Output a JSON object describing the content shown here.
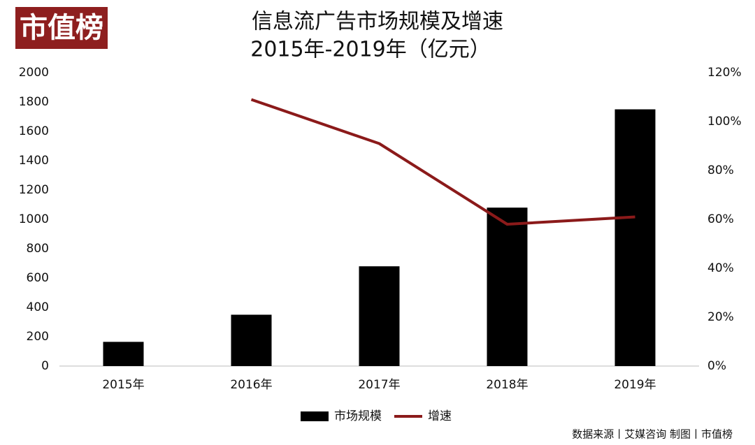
{
  "logo": "市值榜",
  "source": "数据来源丨艾媒咨询 制图丨市值榜",
  "chart_data": {
    "type": "bar",
    "title": "信息流广告市场规模及增速",
    "subtitle": "2015年-2019年（亿元）",
    "categories": [
      "2015年",
      "2016年",
      "2017年",
      "2018年",
      "2019年"
    ],
    "series": [
      {
        "name": "市场规模",
        "type": "bar",
        "color": "#000000",
        "values": [
          165,
          350,
          680,
          1080,
          1750
        ]
      },
      {
        "name": "增速",
        "type": "line",
        "axis": "y2",
        "color": "#8b1a1a",
        "values": [
          null,
          109,
          91,
          58,
          61
        ]
      }
    ],
    "ylim": [
      0,
      2000
    ],
    "yticks": [
      0,
      200,
      400,
      600,
      800,
      1000,
      1200,
      1400,
      1600,
      1800,
      2000
    ],
    "y2lim": [
      0,
      120
    ],
    "y2ticks": [
      {
        "value": 0,
        "label": "0%"
      },
      {
        "value": 20,
        "label": "20%"
      },
      {
        "value": 40,
        "label": "40%"
      },
      {
        "value": 60,
        "label": "60%"
      },
      {
        "value": 80,
        "label": "80%"
      },
      {
        "value": 100,
        "label": "100%"
      },
      {
        "value": 120,
        "label": "120%"
      }
    ],
    "grid": false,
    "legend": "bottom"
  }
}
